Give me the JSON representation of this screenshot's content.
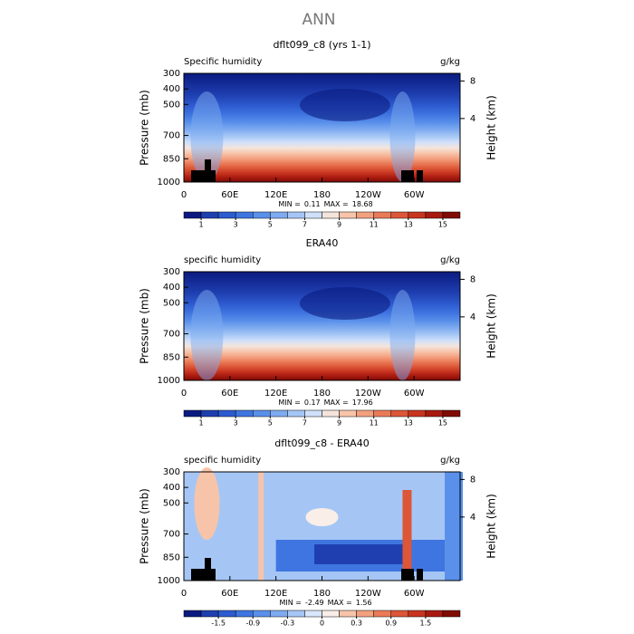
{
  "title": "ANN",
  "chart_data": [
    {
      "type": "contour",
      "title": "dflt099_c8 (yrs 1-1)",
      "left_label": "Specific humidity",
      "units": "g/kg",
      "ylabel": "Pressure (mb)",
      "y2label": "Height (km)",
      "xlim": [
        0,
        360
      ],
      "xticks": [
        0,
        {
          "value": 60,
          "label": "60E"
        },
        {
          "value": 120,
          "label": "120E"
        },
        180,
        {
          "value": 240,
          "label": "120W"
        },
        {
          "value": 300,
          "label": "60W"
        }
      ],
      "ylim": [
        1000,
        300
      ],
      "yticks": [
        300,
        400,
        500,
        700,
        850,
        1000
      ],
      "y2ticks": [
        8,
        4
      ],
      "min_label": "MIN =",
      "min": 0.11,
      "max_label": "MAX =",
      "max": 18.68,
      "colorbar": {
        "levels": [
          1,
          2,
          3,
          4,
          5,
          6,
          7,
          8,
          9,
          10,
          11,
          12,
          13,
          14,
          15
        ],
        "ticks": [
          1,
          3,
          5,
          7,
          9,
          11,
          13,
          15
        ],
        "colors": [
          "#0a1a80",
          "#1f3fb0",
          "#2d5bd0",
          "#3f75e0",
          "#5a90ea",
          "#7eabf0",
          "#a5c6f5",
          "#cfe0fa",
          "#f4e4dc",
          "#f7c4aa",
          "#f3a07f",
          "#ea7a57",
          "#dc5638",
          "#c8351f",
          "#a81a10",
          "#800b05"
        ]
      }
    },
    {
      "type": "contour",
      "title": "ERA40",
      "left_label": "specific humidity",
      "units": "g/kg",
      "ylabel": "Pressure (mb)",
      "y2label": "Height (km)",
      "xlim": [
        0,
        360
      ],
      "xticks": [
        0,
        {
          "value": 60,
          "label": "60E"
        },
        {
          "value": 120,
          "label": "120E"
        },
        180,
        {
          "value": 240,
          "label": "120W"
        },
        {
          "value": 300,
          "label": "60W"
        }
      ],
      "ylim": [
        1000,
        300
      ],
      "yticks": [
        300,
        400,
        500,
        700,
        850,
        1000
      ],
      "y2ticks": [
        8,
        4
      ],
      "min_label": "MIN =",
      "min": 0.17,
      "max_label": "MAX =",
      "max": 17.96,
      "colorbar": {
        "levels": [
          1,
          2,
          3,
          4,
          5,
          6,
          7,
          8,
          9,
          10,
          11,
          12,
          13,
          14,
          15
        ],
        "ticks": [
          1,
          3,
          5,
          7,
          9,
          11,
          13,
          15
        ],
        "colors": [
          "#0a1a80",
          "#1f3fb0",
          "#2d5bd0",
          "#3f75e0",
          "#5a90ea",
          "#7eabf0",
          "#a5c6f5",
          "#cfe0fa",
          "#f4e4dc",
          "#f7c4aa",
          "#f3a07f",
          "#ea7a57",
          "#dc5638",
          "#c8351f",
          "#a81a10",
          "#800b05"
        ]
      }
    },
    {
      "type": "contour-diff",
      "title": "dflt099_c8 - ERA40",
      "left_label": "specific humidity",
      "units": "g/kg",
      "ylabel": "Pressure (mb)",
      "y2label": "Height (km)",
      "xlim": [
        0,
        360
      ],
      "xticks": [
        0,
        {
          "value": 60,
          "label": "60E"
        },
        {
          "value": 120,
          "label": "120E"
        },
        180,
        {
          "value": 240,
          "label": "120W"
        },
        {
          "value": 300,
          "label": "60W"
        }
      ],
      "ylim": [
        1000,
        300
      ],
      "yticks": [
        300,
        400,
        500,
        700,
        850,
        1000
      ],
      "y2ticks": [
        8,
        4
      ],
      "min_label": "MIN =",
      "min": -2.49,
      "max_label": "MAX =",
      "max": 1.56,
      "colorbar": {
        "levels": [
          -1.8,
          -1.5,
          -1.2,
          -0.9,
          -0.6,
          -0.3,
          -0.1,
          0,
          0.1,
          0.3,
          0.6,
          0.9,
          1.2,
          1.5,
          1.8
        ],
        "ticks": [
          -1.5,
          -0.9,
          -0.3,
          0,
          0.3,
          0.9,
          1.5
        ],
        "colors": [
          "#0a1a80",
          "#1f3fb0",
          "#2d5bd0",
          "#3f75e0",
          "#5a90ea",
          "#7eabf0",
          "#a5c6f5",
          "#d8e6fb",
          "#faeee8",
          "#f7c4aa",
          "#f3a07f",
          "#ea7a57",
          "#dc5638",
          "#c8351f",
          "#a81a10",
          "#800b05"
        ]
      }
    }
  ]
}
